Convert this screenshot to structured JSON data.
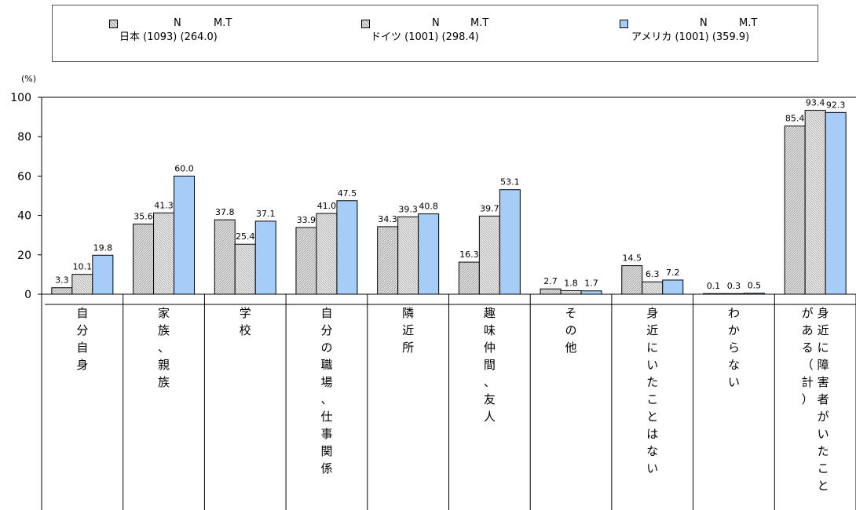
{
  "unit": "(%)",
  "legend": [
    {
      "name": "日本 (1093) (264.0)",
      "n_label": "N",
      "mt_label": "M.T",
      "color": "#cfcfcf"
    },
    {
      "name": "ドイツ (1001) (298.4)",
      "n_label": "N",
      "mt_label": "M.T",
      "color": "#d8d8d8"
    },
    {
      "name": "アメリカ (1001) (359.9)",
      "n_label": "N",
      "mt_label": "M.T",
      "color": "#a6cdf7"
    }
  ],
  "chart_data": {
    "type": "bar",
    "ylim": [
      0,
      100
    ],
    "yticks": [
      0,
      20,
      40,
      60,
      80,
      100
    ],
    "categories": [
      "自分自身",
      "家族、親族",
      "学校",
      "自分の職場、仕事関係",
      "隣近所",
      "趣味仲間、友人",
      "その他",
      "身近にいたことはない",
      "わからない",
      "身近に障害者がいたことがある（計）"
    ],
    "series": [
      {
        "name": "日本 (1093) (264.0)",
        "values": [
          3.3,
          35.6,
          37.8,
          33.9,
          34.3,
          16.3,
          2.7,
          14.5,
          0.1,
          85.4
        ],
        "labels": [
          "3.3",
          "35.6",
          "37.8",
          "33.9",
          "34.3",
          "16.3",
          "2.7",
          "14.5",
          "0.1",
          "85.4"
        ]
      },
      {
        "name": "ドイツ (1001) (298.4)",
        "values": [
          10.1,
          41.3,
          25.4,
          41.0,
          39.3,
          39.7,
          1.8,
          6.3,
          0.3,
          93.4
        ],
        "labels": [
          "10.1",
          "41.3",
          "25.4",
          "41.0",
          "39.3",
          "39.7",
          "1.8",
          "6.3",
          "0.3",
          "93.4"
        ]
      },
      {
        "name": "アメリカ (1001) (359.9)",
        "values": [
          19.8,
          60.0,
          37.1,
          47.5,
          40.8,
          53.1,
          1.7,
          7.2,
          0.5,
          92.3
        ],
        "labels": [
          "19.8",
          "60.0",
          "37.1",
          "47.5",
          "40.8",
          "53.1",
          "1.7",
          "7.2",
          "0.5",
          "92.3"
        ]
      }
    ]
  }
}
